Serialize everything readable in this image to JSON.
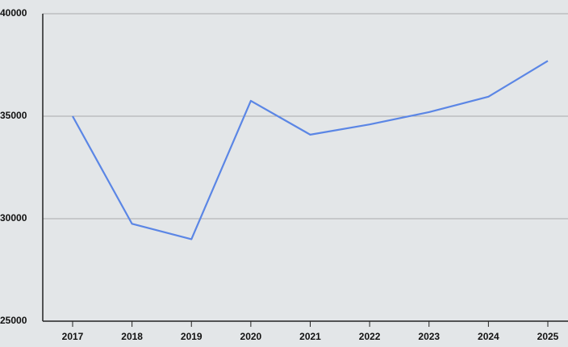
{
  "chart_data": {
    "type": "line",
    "categories": [
      "2017",
      "2018",
      "2019",
      "2020",
      "2021",
      "2022",
      "2023",
      "2024",
      "2025"
    ],
    "series": [
      {
        "color": "#5b86e5",
        "values": [
          35000,
          29750,
          29000,
          35750,
          34100,
          34600,
          35200,
          35950,
          37700
        ]
      }
    ],
    "ylim": [
      25000,
      40000
    ],
    "yticks": [
      25000,
      30000,
      35000,
      40000
    ],
    "grid": true
  }
}
